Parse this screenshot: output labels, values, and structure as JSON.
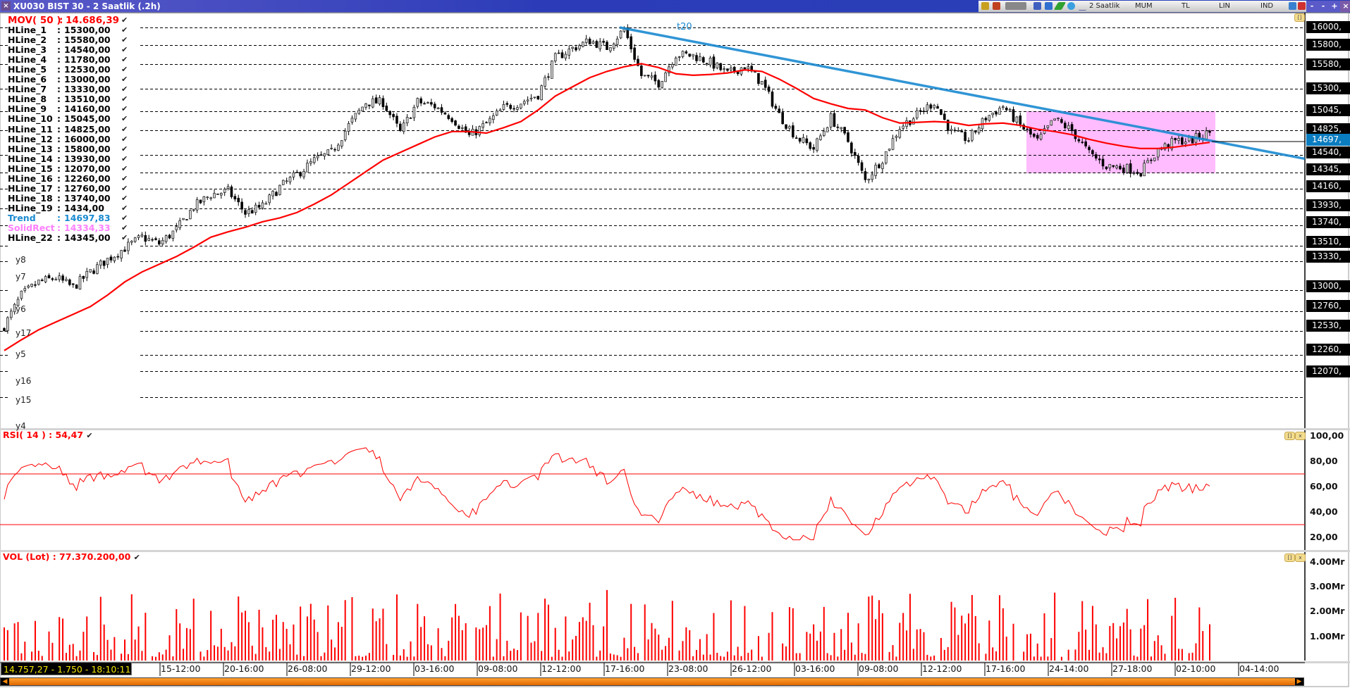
{
  "window": {
    "title": "XU030 BIST 30 - 2 Saatlik (.2h)",
    "close_label": "×"
  },
  "toolbar": {
    "period": "2 Saatlik",
    "chart_type": "MUM",
    "currency": "TL",
    "scale": "LIN",
    "indicators": "IND",
    "window_buttons": [
      "-",
      "-",
      "+",
      "×"
    ],
    "icons": [
      "symbol-icon",
      "portfolio-icon",
      "formula-icon",
      "table-icon",
      "indicator-icon",
      "pencil-icon",
      "move-icon",
      "signal-icon",
      "arrow-icon",
      "tools-icon"
    ]
  },
  "legend": [
    {
      "name": "MOV( 50 )",
      "value": "14.686,39",
      "color": "#ff0000",
      "style": "mov"
    },
    {
      "name": "HLine_1",
      "value": "15300,00"
    },
    {
      "name": "HLine_2",
      "value": "15580,00"
    },
    {
      "name": "HLine_3",
      "value": "14540,00"
    },
    {
      "name": "HLine_4",
      "value": "11780,00"
    },
    {
      "name": "HLine_5",
      "value": "12530,00"
    },
    {
      "name": "HLine_6",
      "value": "13000,00"
    },
    {
      "name": "HLine_7",
      "value": "13330,00"
    },
    {
      "name": "HLine_8",
      "value": "13510,00"
    },
    {
      "name": "HLine_9",
      "value": "14160,00"
    },
    {
      "name": "HLine_10",
      "value": "15045,00"
    },
    {
      "name": "HLine_11",
      "value": "14825,00"
    },
    {
      "name": "HLine_12",
      "value": "16000,00"
    },
    {
      "name": "HLine_13",
      "value": "15800,00"
    },
    {
      "name": "HLine_14",
      "value": "13930,00"
    },
    {
      "name": "HLine_15",
      "value": "12070,00"
    },
    {
      "name": "HLine_16",
      "value": "12260,00"
    },
    {
      "name": "HLine_17",
      "value": "12760,00"
    },
    {
      "name": "HLine_18",
      "value": "13740,00"
    },
    {
      "name": "HLine_19",
      "value": "1434,00"
    },
    {
      "name": "Trend",
      "value": "14697,83",
      "color": "#1a8ad0"
    },
    {
      "name": "SolidRect",
      "value": "14334,33",
      "color": "#ff80ff"
    },
    {
      "name": "HLine_22",
      "value": "14345,00"
    }
  ],
  "check_mark": "✔",
  "y_labels": [
    "y8",
    "y7",
    "y6",
    "y17",
    "y5",
    "y16",
    "y15",
    "y4"
  ],
  "price_axis": {
    "hline_labels": [
      "16000,",
      "15800,",
      "15580,",
      "15300,",
      "15045,",
      "14825,",
      "14540,",
      "14345,",
      "14160,",
      "13930,",
      "13740,",
      "13510,",
      "13330,",
      "13000,",
      "12760,",
      "12530,",
      "12260,",
      "12070,"
    ],
    "current_label": "14697,",
    "current_color": "#0a7cc0"
  },
  "trend_label": "t20",
  "rsi": {
    "legend": "RSI( 14 ) : 54,47",
    "ticks": [
      "100,00",
      "80,00",
      "60,00",
      "40,00",
      "20,00"
    ],
    "upper": 70,
    "lower": 30
  },
  "volume": {
    "legend": "VOL (Lot) : 77.370.200,00",
    "ticks": [
      "4.00Mr",
      "3.00Mr",
      "2.00Mr",
      "1.00Mr"
    ]
  },
  "dates": [
    "15-12:00",
    "20-16:00",
    "26-08:00",
    "29-12:00",
    "03-16:00",
    "09-08:00",
    "12-12:00",
    "17-16:00",
    "23-08:00",
    "26-12:00",
    "03-16:00",
    "09-08:00",
    "12-12:00",
    "17-16:00",
    "24-14:00",
    "27-18:00",
    "02-10:00",
    "04-14:00"
  ],
  "readout": "14.757,27 - 1.750 - 18:10:11",
  "panel_buttons": {
    "restore": "[]",
    "close": "x"
  },
  "colors": {
    "ma": "#ff0000",
    "trend": "#1a8ad0",
    "rect": "#ffbcff",
    "rsi": "#ff0000",
    "volume": "#ff0000",
    "axis_label_bg": "#000000"
  },
  "chart_data": {
    "type": "candlestick",
    "close_anchors": [
      12590,
      12943,
      13090,
      13140,
      13030,
      13207,
      13350,
      13480,
      13604,
      13530,
      13690,
      13950,
      14090,
      14132,
      13880,
      13956,
      14176,
      14320,
      14480,
      14573,
      14881,
      15145,
      15145,
      14800,
      15150,
      15100,
      14969,
      14760,
      14900,
      15080,
      15145,
      15233,
      15650,
      15762,
      15850,
      15770,
      15982,
      15450,
      15366,
      15692,
      15680,
      15600,
      15470,
      15560,
      15366,
      15000,
      14749,
      14617,
      14969,
      14700,
      14250,
      14500,
      14860,
      15000,
      15150,
      14800,
      14720,
      14969,
      15101,
      14881,
      14700,
      14950,
      14820,
      14560,
      14420,
      14400,
      14353,
      14600,
      14700,
      14720,
      14800
    ],
    "ma50_anchors": [
      12309,
      12432,
      12546,
      12635,
      12723,
      12811,
      12943,
      13093,
      13207,
      13295,
      13383,
      13489,
      13604,
      13665,
      13718,
      13780,
      13824,
      13886,
      13982,
      14088,
      14220,
      14353,
      14485,
      14573,
      14661,
      14749,
      14811,
      14811,
      14793,
      14855,
      14925,
      15057,
      15216,
      15322,
      15427,
      15498,
      15551,
      15586,
      15542,
      15471,
      15454,
      15463,
      15480,
      15515,
      15498,
      15410,
      15304,
      15189,
      15128,
      15075,
      15057,
      14969,
      14908,
      14916,
      14925,
      14916,
      14881,
      14899,
      14908,
      14881,
      14837,
      14811,
      14775,
      14722,
      14678,
      14643,
      14617,
      14617,
      14634,
      14661,
      14687
    ],
    "hlines": [
      15300,
      15580,
      14540,
      11780,
      12530,
      13000,
      13330,
      13510,
      14160,
      15045,
      14825,
      16000,
      15800,
      13930,
      12070,
      12260,
      12760,
      13740,
      1434,
      14345
    ],
    "trend": {
      "start": 16000,
      "end_at_axis": 14500,
      "current": 14697.83
    },
    "solid_rect": {
      "top": 15045,
      "bottom": 14334.33
    },
    "current_price": 14697,
    "price_range": [
      11414,
      16150
    ],
    "rsi_range": [
      15,
      100
    ],
    "volume_range_mr": [
      0,
      4.0
    ]
  }
}
